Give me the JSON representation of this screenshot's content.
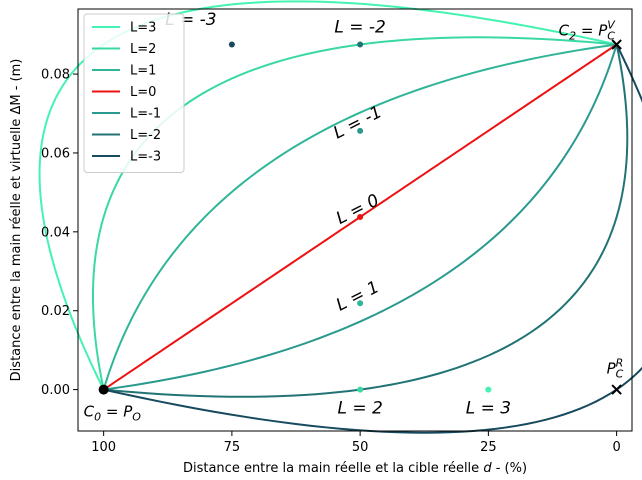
{
  "chart_data": {
    "type": "line",
    "xlabel_prefix": "Distance entre la main réelle et la cible réelle ",
    "xlabel_var": "d",
    "xlabel_suffix": " - (%)",
    "ylabel": "Distance entre la main réelle et virtuelle ΔM - (m)",
    "xlim": [
      105,
      -3
    ],
    "ylim": [
      -0.0105,
      0.0965
    ],
    "xticks": [
      100,
      75,
      50,
      25,
      0
    ],
    "xtick_labels": [
      "100",
      "75",
      "50",
      "25",
      "0"
    ],
    "yticks": [
      0.0,
      0.02,
      0.04,
      0.06,
      0.08
    ],
    "ytick_labels": [
      "0.00",
      "0.02",
      "0.04",
      "0.06",
      "0.08"
    ],
    "grid": false,
    "legend_position": "top-left",
    "start_point": [
      100,
      0
    ],
    "end_point": [
      0,
      0.0875
    ],
    "series": [
      {
        "name": "L=3",
        "L": 3,
        "color": "#44f3b1"
      },
      {
        "name": "L=2",
        "L": 2,
        "color": "#3ad8a5"
      },
      {
        "name": "L=1",
        "L": 1,
        "color": "#31b598"
      },
      {
        "name": "L=0",
        "L": 0,
        "color": "#ee1111"
      },
      {
        "name": "L=-1",
        "L": -1,
        "color": "#2a9a8f"
      },
      {
        "name": "L=-2",
        "L": -2,
        "color": "#227374"
      },
      {
        "name": "L=-3",
        "L": -3,
        "color": "#174a5e"
      }
    ],
    "control_points": [
      {
        "x": 25,
        "y": 0.0,
        "color": "#44f3b1"
      },
      {
        "x": 50,
        "y": 0.0,
        "color": "#3ad8a5"
      },
      {
        "x": 50,
        "y": 0.0219,
        "color": "#31b598"
      },
      {
        "x": 50,
        "y": 0.04375,
        "color": "#ee1111"
      },
      {
        "x": 50,
        "y": 0.0656,
        "color": "#2a9a8f"
      },
      {
        "x": 50,
        "y": 0.0875,
        "color": "#227374"
      },
      {
        "x": 75,
        "y": 0.0875,
        "color": "#174a5e"
      }
    ],
    "annotations": [
      {
        "text": "L = -3",
        "x": 83,
        "y": 0.0925,
        "rotate": 0
      },
      {
        "text": "L = -2",
        "x": 50,
        "y": 0.0905,
        "rotate": 0
      },
      {
        "text": "L = -1",
        "x": 50,
        "y": 0.0665,
        "rotate": -27
      },
      {
        "text": "L = 0",
        "x": 50,
        "y": 0.0445,
        "rotate": -27
      },
      {
        "text": "L = 1",
        "x": 50,
        "y": 0.0225,
        "rotate": -27
      },
      {
        "text": "L = 2",
        "x": 50,
        "y": -0.006,
        "rotate": 0
      },
      {
        "text": "L = 3",
        "x": 25,
        "y": -0.006,
        "rotate": 0
      }
    ],
    "corner_labels": {
      "c0_a": "C",
      "c0_sub": "0",
      "c0_b": " = P",
      "c0_sub2": "O",
      "c2_a": "C",
      "c2_sub": "2",
      "c2_b": " = P",
      "c2_sup2": "V",
      "c2_sub2": "C",
      "pr_a": "P",
      "pr_sup": "R",
      "pr_sub": "C"
    },
    "cross_points": [
      {
        "x": 0,
        "y": 0.0875
      },
      {
        "x": 0,
        "y": 0.0
      }
    ]
  }
}
